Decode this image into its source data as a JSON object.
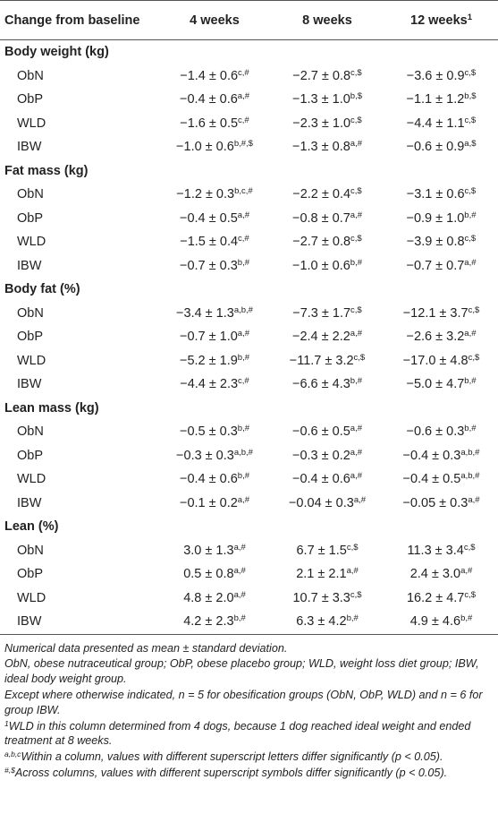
{
  "header": {
    "col0": "Change from baseline",
    "col1": "4 weeks",
    "col2": "8 weeks",
    "col3": "12 weeks",
    "col3_sup": "1"
  },
  "sections": [
    {
      "title": "Body weight (kg)",
      "rows": [
        {
          "label": "ObN",
          "cells": [
            {
              "v": "−1.4 ± 0.6",
              "s": "c,#"
            },
            {
              "v": "−2.7 ± 0.8",
              "s": "c,$"
            },
            {
              "v": "−3.6 ± 0.9",
              "s": "c,$"
            }
          ]
        },
        {
          "label": "ObP",
          "cells": [
            {
              "v": "−0.4 ± 0.6",
              "s": "a,#"
            },
            {
              "v": "−1.3 ± 1.0",
              "s": "b,$"
            },
            {
              "v": "−1.1 ± 1.2",
              "s": "b,$"
            }
          ]
        },
        {
          "label": "WLD",
          "cells": [
            {
              "v": "−1.6 ± 0.5",
              "s": "c,#"
            },
            {
              "v": "−2.3 ± 1.0",
              "s": "c,$"
            },
            {
              "v": "−4.4 ± 1.1",
              "s": "c,$"
            }
          ]
        },
        {
          "label": "IBW",
          "cells": [
            {
              "v": "−1.0 ± 0.6",
              "s": "b,#,$"
            },
            {
              "v": "−1.3 ± 0.8",
              "s": "a,#"
            },
            {
              "v": "−0.6 ± 0.9",
              "s": "a,$"
            }
          ]
        }
      ]
    },
    {
      "title": "Fat mass (kg)",
      "rows": [
        {
          "label": "ObN",
          "cells": [
            {
              "v": "−1.2 ± 0.3",
              "s": "b,c,#"
            },
            {
              "v": "−2.2 ± 0.4",
              "s": "c,$"
            },
            {
              "v": "−3.1 ± 0.6",
              "s": "c,$"
            }
          ]
        },
        {
          "label": "ObP",
          "cells": [
            {
              "v": "−0.4 ± 0.5",
              "s": "a,#"
            },
            {
              "v": "−0.8 ± 0.7",
              "s": "a,#"
            },
            {
              "v": "−0.9 ± 1.0",
              "s": "b,#"
            }
          ]
        },
        {
          "label": "WLD",
          "cells": [
            {
              "v": "−1.5 ± 0.4",
              "s": "c,#"
            },
            {
              "v": "−2.7 ± 0.8",
              "s": "c,$"
            },
            {
              "v": "−3.9 ± 0.8",
              "s": "c,$"
            }
          ]
        },
        {
          "label": "IBW",
          "cells": [
            {
              "v": "−0.7 ± 0.3",
              "s": "b,#"
            },
            {
              "v": "−1.0 ± 0.6",
              "s": "b,#"
            },
            {
              "v": "−0.7 ± 0.7",
              "s": "a,#"
            }
          ]
        }
      ]
    },
    {
      "title": "Body fat (%)",
      "rows": [
        {
          "label": "ObN",
          "cells": [
            {
              "v": "−3.4 ± 1.3",
              "s": "a,b,#"
            },
            {
              "v": "−7.3 ± 1.7",
              "s": "c,$"
            },
            {
              "v": "−12.1 ± 3.7",
              "s": "c,$"
            }
          ]
        },
        {
          "label": "ObP",
          "cells": [
            {
              "v": "−0.7 ± 1.0",
              "s": "a,#"
            },
            {
              "v": "−2.4 ± 2.2",
              "s": "a,#"
            },
            {
              "v": "−2.6 ± 3.2",
              "s": "a,#"
            }
          ]
        },
        {
          "label": "WLD",
          "cells": [
            {
              "v": "−5.2 ± 1.9",
              "s": "b,#"
            },
            {
              "v": "−11.7 ± 3.2",
              "s": "c,$"
            },
            {
              "v": "−17.0 ± 4.8",
              "s": "c,$"
            }
          ]
        },
        {
          "label": "IBW",
          "cells": [
            {
              "v": "−4.4 ± 2.3",
              "s": "c,#"
            },
            {
              "v": "−6.6 ± 4.3",
              "s": "b,#"
            },
            {
              "v": "−5.0 ± 4.7",
              "s": "b,#"
            }
          ]
        }
      ]
    },
    {
      "title": "Lean mass (kg)",
      "rows": [
        {
          "label": "ObN",
          "cells": [
            {
              "v": "−0.5 ± 0.3",
              "s": "b,#"
            },
            {
              "v": "−0.6 ± 0.5",
              "s": "a,#"
            },
            {
              "v": "−0.6 ± 0.3",
              "s": "b,#"
            }
          ]
        },
        {
          "label": "ObP",
          "cells": [
            {
              "v": "−0.3 ± 0.3",
              "s": "a,b,#"
            },
            {
              "v": "−0.3 ± 0.2",
              "s": "a,#"
            },
            {
              "v": "−0.4 ± 0.3",
              "s": "a,b,#"
            }
          ]
        },
        {
          "label": "WLD",
          "cells": [
            {
              "v": "−0.4 ± 0.6",
              "s": "b,#"
            },
            {
              "v": "−0.4 ± 0.6",
              "s": "a,#"
            },
            {
              "v": "−0.4 ± 0.5",
              "s": "a,b,#"
            }
          ]
        },
        {
          "label": "IBW",
          "cells": [
            {
              "v": "−0.1 ± 0.2",
              "s": "a,#"
            },
            {
              "v": "−0.04 ± 0.3",
              "s": "a,#"
            },
            {
              "v": "−0.05 ± 0.3",
              "s": "a,#"
            }
          ]
        }
      ]
    },
    {
      "title": "Lean (%)",
      "rows": [
        {
          "label": "ObN",
          "cells": [
            {
              "v": "3.0 ± 1.3",
              "s": "a,#"
            },
            {
              "v": "6.7 ± 1.5",
              "s": "c,$"
            },
            {
              "v": "11.3 ± 3.4",
              "s": "c,$"
            }
          ]
        },
        {
          "label": "ObP",
          "cells": [
            {
              "v": "0.5 ± 0.8",
              "s": "a,#"
            },
            {
              "v": "2.1 ± 2.1",
              "s": "a,#"
            },
            {
              "v": "2.4 ± 3.0",
              "s": "a,#"
            }
          ]
        },
        {
          "label": "WLD",
          "cells": [
            {
              "v": "4.8 ± 2.0",
              "s": "a,#"
            },
            {
              "v": "10.7 ± 3.3",
              "s": "c,$"
            },
            {
              "v": "16.2 ± 4.7",
              "s": "c,$"
            }
          ]
        },
        {
          "label": "IBW",
          "cells": [
            {
              "v": "4.2 ± 2.3",
              "s": "b,#"
            },
            {
              "v": "6.3 ± 4.2",
              "s": "b,#"
            },
            {
              "v": "4.9 ± 4.6",
              "s": "b,#"
            }
          ]
        }
      ]
    }
  ],
  "footnotes": {
    "n1": "Numerical data presented as mean ± standard deviation.",
    "n2": "ObN, obese nutraceutical group; ObP, obese placebo group; WLD, weight loss diet group; IBW, ideal body weight group.",
    "n3": "Except where otherwise indicated, n = 5 for obesification groups (ObN, ObP, WLD) and n = 6 for group IBW.",
    "n4_sup": "1",
    "n4": "WLD in this column determined from 4 dogs, because 1 dog reached ideal weight and ended treatment at 8 weeks.",
    "n5_sup": "a,b,c",
    "n5": "Within a column, values with different superscript letters differ significantly (p < 0.05).",
    "n6_sup": "#,$",
    "n6": "Across columns, values with different superscript symbols differ significantly (p < 0.05)."
  }
}
